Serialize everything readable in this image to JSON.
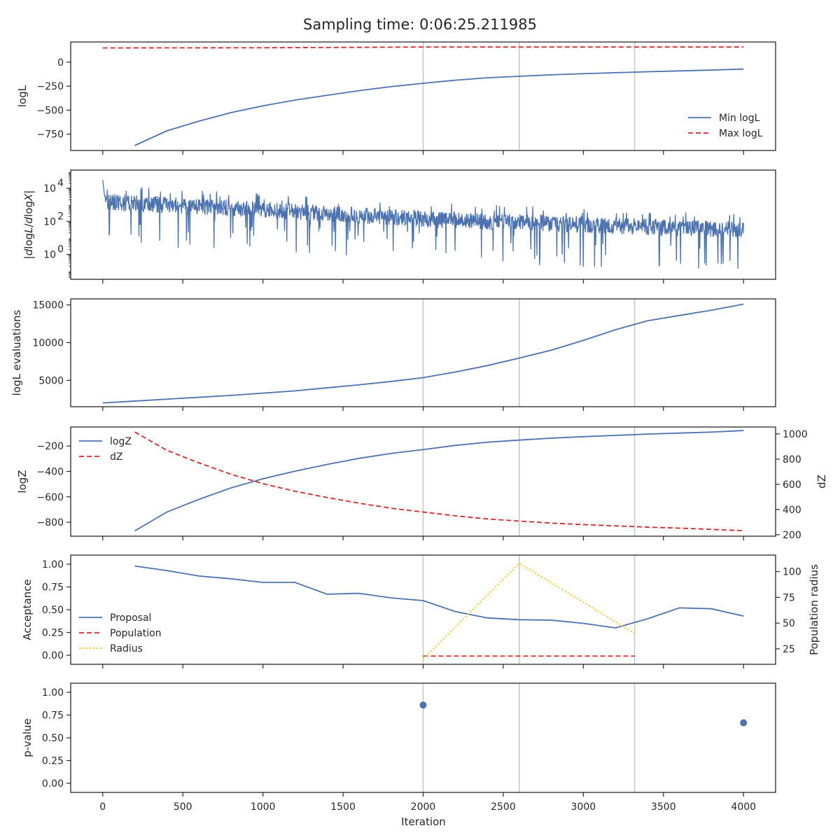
{
  "title": "Sampling time: 0:06:25.211985",
  "xlabel": "Iteration",
  "x_ticks": [
    "0",
    "500",
    "1000",
    "1500",
    "2000",
    "2500",
    "3000",
    "3500",
    "4000"
  ],
  "colors": {
    "blue": "#4c72b0",
    "red": "#d62728",
    "orange": "#ffc000",
    "vline": "#c8c8c8"
  },
  "vlines_x": [
    2000,
    2600,
    3320
  ],
  "chart_data": [
    {
      "type": "line",
      "xlim": [
        -200,
        4200
      ],
      "ylabel": "logL",
      "ylim": [
        -920,
        210
      ],
      "y_ticks": [
        {
          "v": 0,
          "label": "0"
        },
        {
          "v": -250,
          "label": "−250"
        },
        {
          "v": -500,
          "label": "−500"
        },
        {
          "v": -750,
          "label": "−750"
        }
      ],
      "legend": "lower right",
      "series": [
        {
          "name": "Min logL",
          "style": "solid",
          "color": "#4c72b0",
          "x": [
            200,
            400,
            600,
            800,
            1000,
            1200,
            1400,
            1600,
            1800,
            2000,
            2200,
            2400,
            2600,
            2800,
            3000,
            3200,
            3400,
            3600,
            3800,
            4000
          ],
          "y": [
            -868,
            -715,
            -615,
            -525,
            -455,
            -395,
            -345,
            -297,
            -255,
            -220,
            -188,
            -163,
            -147,
            -132,
            -120,
            -110,
            -100,
            -91,
            -82,
            -72
          ]
        },
        {
          "name": "Max logL",
          "style": "dashed",
          "color": "#d62728",
          "x": [
            0,
            1000,
            2000,
            3000,
            4000
          ],
          "y": [
            148,
            150,
            158,
            158,
            158
          ]
        }
      ]
    },
    {
      "type": "line",
      "xlim": [
        -200,
        4200
      ],
      "ylabel": "|dlogL/dlogX|",
      "yscale": "log",
      "ylim_log10": [
        -1.5,
        5.1
      ],
      "y_ticks": [
        {
          "v": 4,
          "label": "10⁴"
        },
        {
          "v": 2,
          "label": "10²"
        },
        {
          "v": 0,
          "label": "10⁰"
        }
      ],
      "series": [
        {
          "name": "",
          "style": "solid",
          "color": "#4c72b0",
          "noisy": true,
          "x": [
            0,
            1000,
            2000,
            3000,
            4000
          ],
          "log10_trend": [
            3.2,
            2.7,
            2.15,
            1.8,
            1.5
          ],
          "log10_spread": 0.5
        }
      ]
    },
    {
      "type": "line",
      "xlim": [
        -200,
        4200
      ],
      "ylabel": "logL evaluations",
      "ylim": [
        1500,
        15800
      ],
      "y_ticks": [
        {
          "v": 15000,
          "label": "15000"
        },
        {
          "v": 10000,
          "label": "10000"
        },
        {
          "v": 5000,
          "label": "5000"
        }
      ],
      "series": [
        {
          "name": "",
          "style": "solid",
          "color": "#4c72b0",
          "x": [
            0,
            200,
            400,
            600,
            800,
            1000,
            1200,
            1400,
            1600,
            1800,
            2000,
            2200,
            2400,
            2600,
            2800,
            3000,
            3200,
            3400,
            3600,
            3800,
            4000
          ],
          "y": [
            2000,
            2250,
            2500,
            2750,
            3000,
            3300,
            3600,
            4000,
            4400,
            4850,
            5350,
            6100,
            6950,
            7950,
            9000,
            10300,
            11700,
            12900,
            13600,
            14300,
            15100
          ]
        }
      ]
    },
    {
      "type": "line",
      "xlim": [
        -200,
        4200
      ],
      "ylabel": "logZ",
      "ylim": [
        -910,
        -50
      ],
      "y_ticks": [
        {
          "v": -200,
          "label": "−200"
        },
        {
          "v": -400,
          "label": "−400"
        },
        {
          "v": -600,
          "label": "−600"
        },
        {
          "v": -800,
          "label": "−800"
        }
      ],
      "ylabel_right": "dZ",
      "ylim_right": [
        188,
        1055
      ],
      "y_ticks_right": [
        {
          "v": 1000,
          "label": "1000"
        },
        {
          "v": 800,
          "label": "800"
        },
        {
          "v": 600,
          "label": "600"
        },
        {
          "v": 400,
          "label": "400"
        },
        {
          "v": 200,
          "label": "200"
        }
      ],
      "legend": "upper left",
      "series": [
        {
          "name": "logZ",
          "style": "solid",
          "color": "#4c72b0",
          "axis": "left",
          "x": [
            200,
            400,
            600,
            800,
            1000,
            1200,
            1400,
            1600,
            1800,
            2000,
            2200,
            2400,
            2600,
            2800,
            3000,
            3200,
            3400,
            3600,
            3800,
            4000
          ],
          "y": [
            -868,
            -720,
            -620,
            -530,
            -458,
            -398,
            -345,
            -297,
            -258,
            -228,
            -195,
            -170,
            -153,
            -138,
            -126,
            -116,
            -106,
            -98,
            -90,
            -78
          ]
        },
        {
          "name": "dZ",
          "style": "dashed",
          "color": "#d62728",
          "axis": "right",
          "x": [
            200,
            400,
            600,
            800,
            1000,
            1200,
            1400,
            1600,
            1800,
            2000,
            2200,
            2400,
            2600,
            2800,
            3000,
            3200,
            3400,
            3600,
            3800,
            4000
          ],
          "y": [
            1015,
            870,
            770,
            680,
            605,
            545,
            495,
            450,
            410,
            380,
            350,
            325,
            308,
            292,
            280,
            270,
            260,
            252,
            242,
            232
          ]
        }
      ]
    },
    {
      "type": "line",
      "xlim": [
        -200,
        4200
      ],
      "ylabel": "Acceptance",
      "ylim": [
        -0.1,
        1.1
      ],
      "y_ticks": [
        {
          "v": 1.0,
          "label": "1.00"
        },
        {
          "v": 0.75,
          "label": "0.75"
        },
        {
          "v": 0.5,
          "label": "0.50"
        },
        {
          "v": 0.25,
          "label": "0.25"
        },
        {
          "v": 0.0,
          "label": "0.00"
        }
      ],
      "ylabel_right": "Population radius",
      "ylim_right": [
        10,
        116
      ],
      "y_ticks_right": [
        {
          "v": 100,
          "label": "100"
        },
        {
          "v": 75,
          "label": "75"
        },
        {
          "v": 50,
          "label": "50"
        },
        {
          "v": 25,
          "label": "25"
        }
      ],
      "legend": "lower left",
      "series": [
        {
          "name": "Proposal",
          "style": "solid",
          "color": "#4c72b0",
          "axis": "left",
          "x": [
            200,
            400,
            600,
            800,
            1000,
            1200,
            1400,
            1600,
            1800,
            2000,
            2200,
            2400,
            2600,
            2800,
            3000,
            3200,
            3400,
            3600,
            3800,
            4000
          ],
          "y": [
            0.98,
            0.93,
            0.87,
            0.84,
            0.8,
            0.8,
            0.67,
            0.68,
            0.63,
            0.6,
            0.48,
            0.41,
            0.39,
            0.385,
            0.35,
            0.3,
            0.4,
            0.52,
            0.51,
            0.43
          ]
        },
        {
          "name": "Population",
          "style": "dashed",
          "color": "#d62728",
          "axis": "right",
          "x": [
            2000,
            3320
          ],
          "y": [
            18,
            18
          ]
        },
        {
          "name": "Radius",
          "style": "dotted",
          "color": "#ffc000",
          "axis": "right",
          "x": [
            2000,
            2600,
            3320
          ],
          "y": [
            15,
            108,
            40
          ]
        }
      ]
    },
    {
      "type": "scatter",
      "xlim": [
        -200,
        4200
      ],
      "ylabel": "p-value",
      "ylim": [
        -0.1,
        1.1
      ],
      "y_ticks": [
        {
          "v": 1.0,
          "label": "1.00"
        },
        {
          "v": 0.75,
          "label": "0.75"
        },
        {
          "v": 0.5,
          "label": "0.50"
        },
        {
          "v": 0.25,
          "label": "0.25"
        },
        {
          "v": 0.0,
          "label": "0.00"
        }
      ],
      "series": [
        {
          "name": "",
          "color": "#4c72b0",
          "x": [
            2000,
            4000
          ],
          "y": [
            0.86,
            0.665
          ]
        }
      ]
    }
  ]
}
